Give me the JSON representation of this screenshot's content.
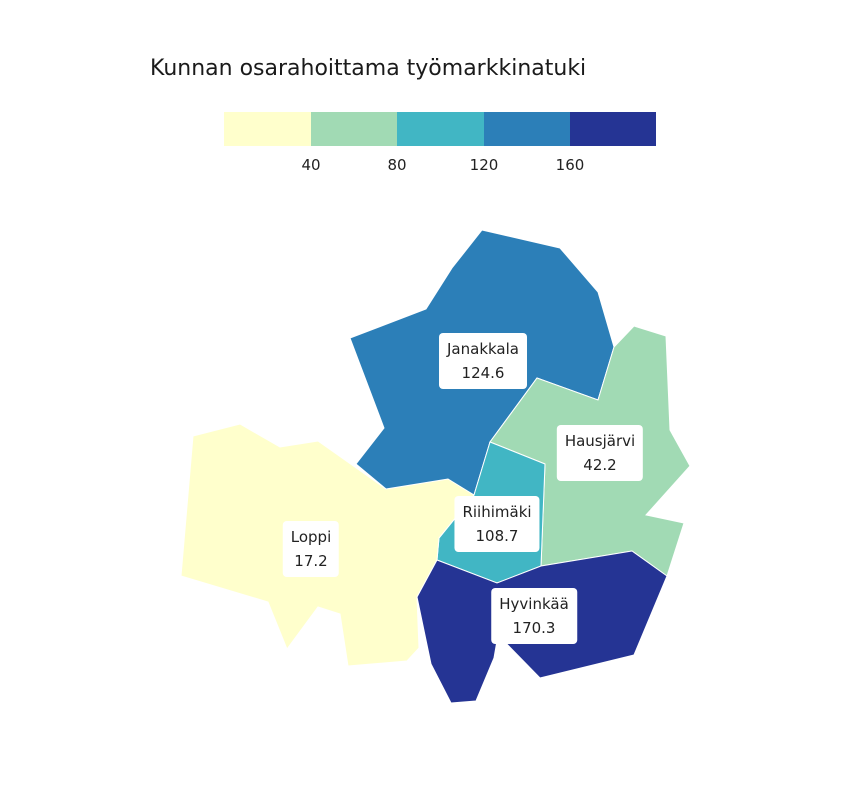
{
  "title": "Kunnan osarahoittama työmarkkinatuki",
  "legend": {
    "colors": [
      "#ffffcc",
      "#a1dab4",
      "#41b6c4",
      "#2c7fb8",
      "#253494"
    ],
    "ticks": [
      "40",
      "80",
      "120",
      "160"
    ]
  },
  "regions": [
    {
      "name": "Janakkala",
      "value": "124.6",
      "color": "#2c7fb8"
    },
    {
      "name": "Hausjärvi",
      "value": "42.2",
      "color": "#a1dab4"
    },
    {
      "name": "Riihimäki",
      "value": "108.7",
      "color": "#41b6c4"
    },
    {
      "name": "Loppi",
      "value": "17.2",
      "color": "#ffffcc"
    },
    {
      "name": "Hyvinkää",
      "value": "170.3",
      "color": "#253494"
    }
  ]
}
